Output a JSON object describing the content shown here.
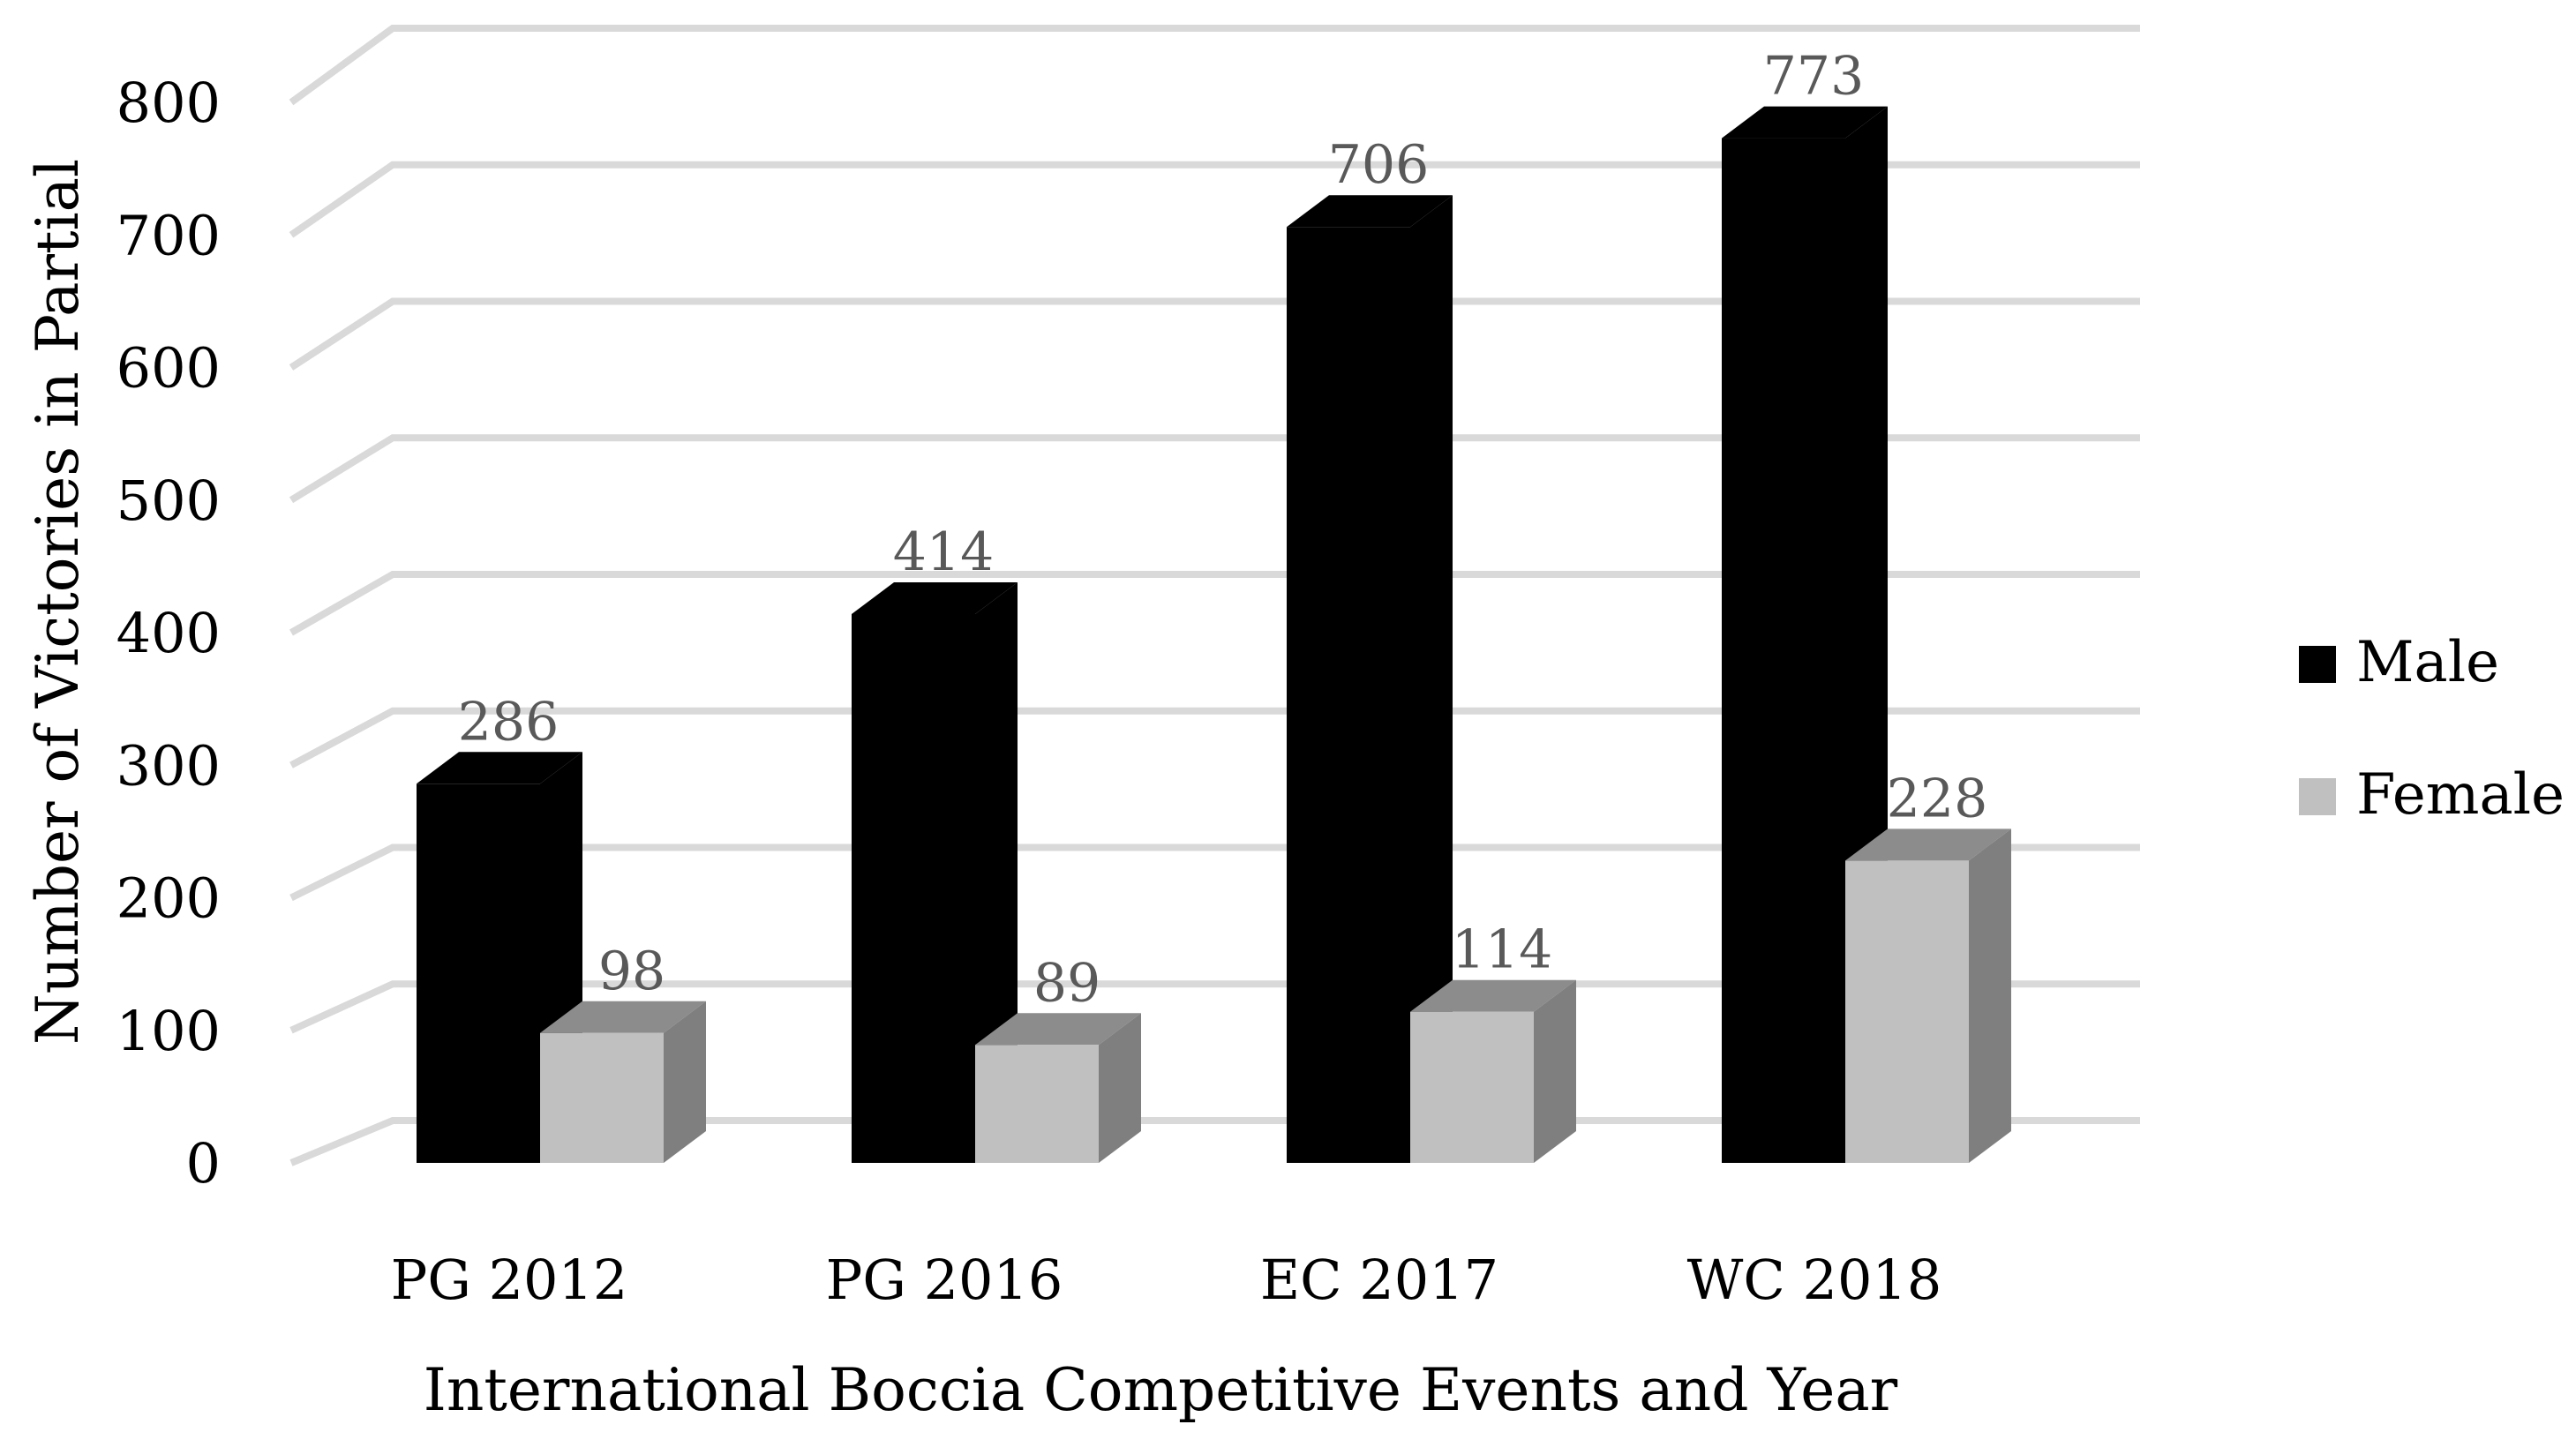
{
  "chart_data": {
    "type": "bar",
    "categories": [
      "PG 2012",
      "PG 2016",
      "EC 2017",
      "WC 2018"
    ],
    "series": [
      {
        "name": "Male",
        "values": [
          286,
          414,
          706,
          773
        ],
        "color": "#000000",
        "side_color": "#000000",
        "top_color": "#000000"
      },
      {
        "name": "Female",
        "values": [
          98,
          89,
          114,
          228
        ],
        "color": "#c0c0c0",
        "side_color": "#7f7f7f",
        "top_color": "#8c8c8c"
      }
    ],
    "xlabel": "International Boccia Competitive Events and Year",
    "ylabel": "Number of Victories in Partial",
    "ylim": [
      0,
      800
    ],
    "yticks": [
      0,
      100,
      200,
      300,
      400,
      500,
      600,
      700,
      800
    ],
    "grid": true,
    "legend": "right",
    "projection": "3d-bar"
  }
}
